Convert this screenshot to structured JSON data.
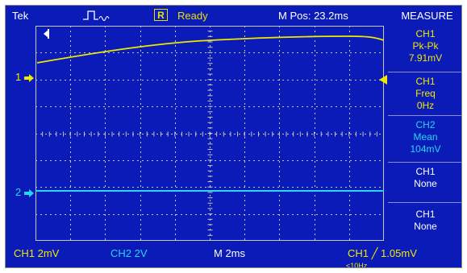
{
  "topbar": {
    "brand": "Tek",
    "run_indicator": "R",
    "acq_status": "Ready",
    "m_pos": "M Pos: 23.2ms"
  },
  "measure": {
    "title": "MEASURE",
    "cells": [
      {
        "source": "CH1",
        "type": "Pk-Pk",
        "value": "7.91mV"
      },
      {
        "source": "CH1",
        "type": "Freq",
        "value": "0Hz"
      },
      {
        "source": "CH2",
        "type": "Mean",
        "value": "104mV"
      },
      {
        "source": "CH1",
        "type": "None",
        "value": ""
      },
      {
        "source": "CH1",
        "type": "None",
        "value": ""
      }
    ]
  },
  "markers": {
    "ch1_label": "1",
    "ch2_label": "2"
  },
  "bottombar": {
    "ch1_scale": "CH1  2mV",
    "ch2_scale": "CH2  2V",
    "timebase": "M 2ms",
    "trigger": "CH1 ╱ 1.05mV",
    "trigger_freq": "<10Hz"
  },
  "colors": {
    "background": "#0a1bb8",
    "ch1": "#f0e800",
    "ch2": "#27d6f0",
    "grid": "#c8c8c8"
  },
  "icons": {
    "trigger_waveform": "pulse-waveform-icon",
    "trigger_position": "trigger-position-icon",
    "trigger_level": "trigger-level-arrow-icon"
  }
}
